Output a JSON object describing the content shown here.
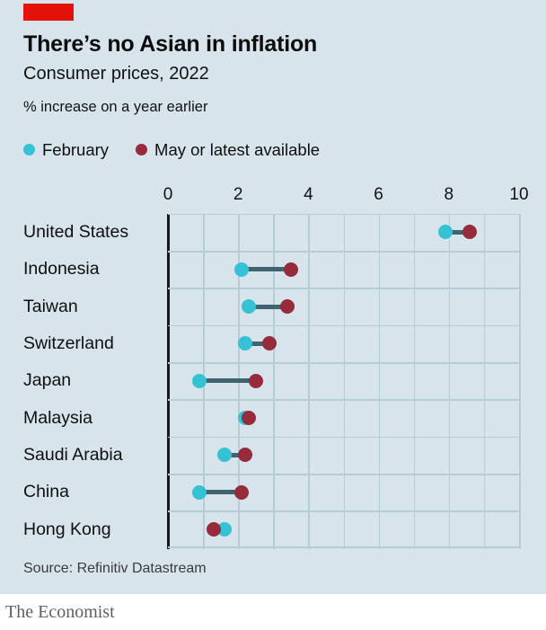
{
  "header": {
    "title": "There’s no Asian in inflation",
    "subtitle": "Consumer prices, 2022",
    "note": "% increase on a year earlier"
  },
  "colors": {
    "accent_red": "#e3120b",
    "february_dot": "#36c2d4",
    "may_dot": "#962b3c",
    "connector": "#3f6470",
    "background": "#d7e4eb",
    "gridline": "#b6ccd7"
  },
  "legend": [
    {
      "label": "February",
      "color": "#36c2d4"
    },
    {
      "label": "May or latest available",
      "color": "#962b3c"
    }
  ],
  "chart_data": {
    "type": "dumbbell",
    "title": "There’s no Asian in inflation",
    "subtitle": "Consumer prices, 2022",
    "xlabel": "% increase on a year earlier",
    "xlim": [
      0,
      10
    ],
    "ticks": [
      0,
      2,
      4,
      6,
      8,
      10
    ],
    "minor_grid_step": 1,
    "grid": true,
    "legend_position": "top",
    "categories": [
      "United States",
      "Indonesia",
      "Taiwan",
      "Switzerland",
      "Japan",
      "Malaysia",
      "Saudi Arabia",
      "China",
      "Hong Kong"
    ],
    "series": [
      {
        "name": "February",
        "color": "#36c2d4",
        "values": [
          7.9,
          2.1,
          2.3,
          2.2,
          0.9,
          2.2,
          1.6,
          0.9,
          1.6
        ]
      },
      {
        "name": "May or latest available",
        "color": "#962b3c",
        "values": [
          8.6,
          3.5,
          3.4,
          2.9,
          2.5,
          2.3,
          2.2,
          2.1,
          1.3
        ]
      }
    ]
  },
  "source": "Source: Refinitiv Datastream",
  "footer": {
    "brand": "The Economist"
  }
}
